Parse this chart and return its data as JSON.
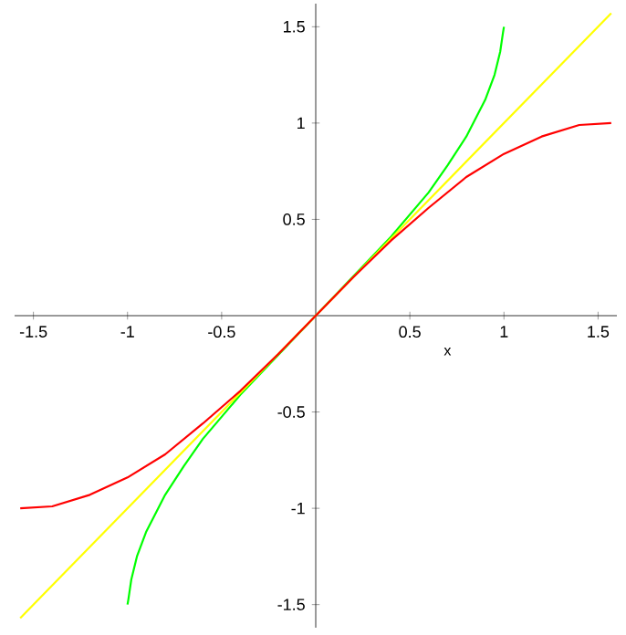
{
  "chart_data": {
    "type": "line",
    "xlabel": "x",
    "xlim": [
      -1.6,
      1.6
    ],
    "ylim": [
      -1.62,
      1.62
    ],
    "xticks": [
      -1.5,
      -1,
      -0.5,
      0.5,
      1,
      1.5
    ],
    "yticks": [
      -1.5,
      -1,
      -0.5,
      0.5,
      1,
      1.5
    ],
    "grid": false,
    "series": [
      {
        "color": "#00ff00",
        "x": [
          -1,
          -0.995,
          -0.98,
          -0.95,
          -0.9,
          -0.8,
          -0.7,
          -0.6,
          -0.4,
          -0.2,
          0,
          0.2,
          0.4,
          0.6,
          0.7,
          0.8,
          0.9,
          0.95,
          0.98,
          0.995,
          1
        ],
        "values": [
          -1.5,
          -1.47,
          -1.37,
          -1.25,
          -1.12,
          -0.93,
          -0.78,
          -0.64,
          -0.41,
          null,
          null,
          null,
          0.41,
          0.64,
          0.78,
          0.93,
          1.12,
          1.25,
          1.37,
          1.47,
          1.5
        ]
      },
      {
        "color": "#ffff00",
        "x": [
          -1.57,
          1.57
        ],
        "values": [
          -1.57,
          1.57
        ]
      },
      {
        "color": "#ff0000",
        "x": [
          -1.57,
          -1.4,
          -1.2,
          -1,
          -0.8,
          -0.6,
          -0.4,
          -0.2,
          0,
          0.2,
          0.4,
          0.6,
          0.8,
          1,
          1.2,
          1.4,
          1.57
        ],
        "values": [
          -1,
          -0.99,
          -0.93,
          -0.84,
          -0.72,
          -0.56,
          -0.39,
          -0.2,
          0,
          0.2,
          0.39,
          0.56,
          0.72,
          0.84,
          0.93,
          0.99,
          1
        ]
      }
    ]
  }
}
